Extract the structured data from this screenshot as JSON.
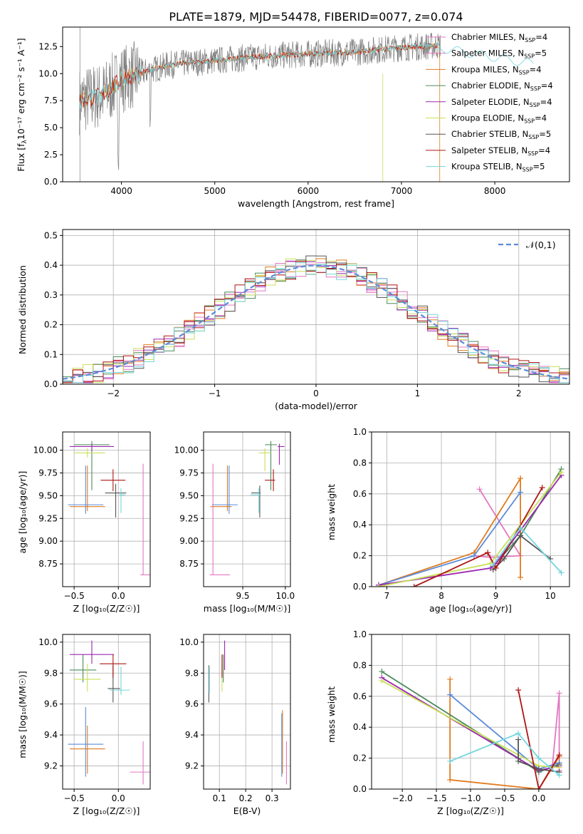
{
  "title": "PLATE=1879, MJD=54478, FIBERID=0077, z=0.074",
  "colors": {
    "Chabrier MILES": "#e377c2",
    "Salpeter MILES": "#e377c2",
    "Kroupa MILES": "#e07b20",
    "Chabrier ELODIE": "#4a8a5a",
    "Salpeter ELODIE": "#9b27b0",
    "Kroupa ELODIE": "#c8e05a",
    "Chabrier STELIB": "#555555",
    "Salpeter STELIB": "#b01515",
    "Kroupa STELIB": "#73d6dd",
    "data": "#808080",
    "cornflower": "#5b8bd9"
  },
  "chart_data": [
    {
      "id": "spectrum",
      "type": "line",
      "xlabel": "wavelength [Angstrom, rest frame]",
      "ylabel_text": "Flux [f",
      "ylabel_units": "10⁻¹⁷ erg cm⁻² s⁻¹ A⁻¹]",
      "xlim": [
        3370,
        8800
      ],
      "ylim": [
        0,
        14.3
      ],
      "xticks": [
        4000,
        5000,
        6000,
        7000,
        8000
      ],
      "yticks": [
        "0.0",
        "2.5",
        "5.0",
        "7.5",
        "10.0",
        "12.5"
      ],
      "legend_position": "upper right",
      "legend": [
        {
          "name": "Chabrier MILES",
          "nssp": "4"
        },
        {
          "name": "Salpeter MILES",
          "nssp": "5"
        },
        {
          "name": "Kroupa MILES",
          "nssp": "4"
        },
        {
          "name": "Chabrier ELODIE",
          "nssp": "4"
        },
        {
          "name": "Salpeter ELODIE",
          "nssp": "4"
        },
        {
          "name": "Kroupa ELODIE",
          "nssp": "4"
        },
        {
          "name": "Chabrier STELIB",
          "nssp": "5"
        },
        {
          "name": "Salpeter STELIB",
          "nssp": "4"
        },
        {
          "name": "Kroupa STELIB",
          "nssp": "5"
        }
      ],
      "continuum": {
        "x": [
          3550,
          3800,
          4000,
          4500,
          5000,
          5500,
          6000,
          6500,
          7000,
          7400
        ],
        "y": [
          7.5,
          8.0,
          9.5,
          10.8,
          11.2,
          11.6,
          11.8,
          12.0,
          12.4,
          12.6
        ]
      }
    },
    {
      "id": "residuals",
      "type": "line",
      "xlabel": "(data-model)/error",
      "ylabel": "Normed distribution",
      "xlim": [
        -2.5,
        2.5
      ],
      "ylim": [
        0,
        0.52
      ],
      "xticks": [
        "−2",
        "−1",
        "0",
        "1",
        "2"
      ],
      "yticks": [
        "0.0",
        "0.1",
        "0.2",
        "0.3",
        "0.4",
        "0.5"
      ],
      "legend": "𝒩(0,1)",
      "gaussian": {
        "mean": 0,
        "sigma": 1
      }
    },
    {
      "id": "age_vs_Z",
      "type": "scatter",
      "xlabel": "Z [log₁₀(Z/Z☉)]",
      "ylabel": "age  [log₁₀(age/yr)]",
      "xlim": [
        -0.63,
        0.36
      ],
      "ylim": [
        8.5,
        10.2
      ],
      "xticks": [
        "−0.5",
        "0.0"
      ],
      "yticks": [
        "8.75",
        "9.00",
        "9.25",
        "9.50",
        "9.75",
        "10.00"
      ],
      "points": [
        {
          "s": "Chabrier MILES",
          "x": 0.28,
          "y": 8.63,
          "xe": [
            0.03,
            0.1
          ],
          "ye": [
            0,
            1.22
          ]
        },
        {
          "s": "Kroupa MILES",
          "x": -0.35,
          "y": 9.38,
          "xe": [
            0.2,
            0.2
          ],
          "ye": [
            0.05,
            0.45
          ]
        },
        {
          "s": "cornflower",
          "x": -0.37,
          "y": 9.4,
          "xe": [
            0.2,
            0.2
          ],
          "ye": [
            0.1,
            0.43
          ]
        },
        {
          "s": "Chabrier ELODIE",
          "x": -0.3,
          "y": 10.06,
          "xe": [
            0.2,
            0.2
          ],
          "ye": [
            0.5,
            0.04
          ]
        },
        {
          "s": "Salpeter ELODIE",
          "x": -0.3,
          "y": 10.04,
          "xe": [
            0.25,
            0.25
          ],
          "ye": [
            0.05,
            0.03
          ]
        },
        {
          "s": "Kroupa ELODIE",
          "x": -0.35,
          "y": 9.97,
          "xe": [
            0.15,
            0.2
          ],
          "ye": [
            0.05,
            0.05
          ]
        },
        {
          "s": "Chabrier STELIB",
          "x": -0.03,
          "y": 9.53,
          "xe": [
            0.12,
            0.12
          ],
          "ye": [
            0.27,
            0.1
          ]
        },
        {
          "s": "Salpeter STELIB",
          "x": -0.06,
          "y": 9.67,
          "xe": [
            0.14,
            0.14
          ],
          "ye": [
            0.12,
            0.12
          ]
        },
        {
          "s": "Kroupa STELIB",
          "x": 0.03,
          "y": 9.51,
          "xe": [
            0.02,
            0.05
          ],
          "ye": [
            0.2,
            0.07
          ]
        }
      ]
    },
    {
      "id": "age_vs_mass",
      "type": "scatter",
      "xlabel": "mass [log₁₀(M/M☉)]",
      "xlim": [
        9.04,
        10.06
      ],
      "ylim": [
        8.5,
        10.2
      ],
      "xticks": [
        "9.5",
        "10.0"
      ],
      "yticks": [
        "8.75",
        "9.00",
        "9.25",
        "9.50",
        "9.75",
        "10.00"
      ],
      "points": [
        {
          "s": "Chabrier MILES",
          "x": 9.15,
          "y": 8.63,
          "xe": [
            0.04,
            0.2
          ],
          "ye": [
            0,
            1.22
          ]
        },
        {
          "s": "Kroupa MILES",
          "x": 9.32,
          "y": 9.38,
          "xe": [
            0.2,
            0.05
          ],
          "ye": [
            0.05,
            0.45
          ]
        },
        {
          "s": "cornflower",
          "x": 9.34,
          "y": 9.4,
          "xe": [
            0.2,
            0.1
          ],
          "ye": [
            0.1,
            0.43
          ]
        },
        {
          "s": "Chabrier ELODIE",
          "x": 9.83,
          "y": 10.06,
          "xe": [
            0.07,
            0.07
          ],
          "ye": [
            0.5,
            0.04
          ]
        },
        {
          "s": "Salpeter ELODIE",
          "x": 9.93,
          "y": 10.04,
          "xe": [
            0.02,
            0.06
          ],
          "ye": [
            0.2,
            0.03
          ]
        },
        {
          "s": "Kroupa ELODIE",
          "x": 9.76,
          "y": 9.97,
          "xe": [
            0.07,
            0.07
          ],
          "ye": [
            0.2,
            0.05
          ]
        },
        {
          "s": "Chabrier STELIB",
          "x": 9.7,
          "y": 9.53,
          "xe": [
            0.1,
            0.01
          ],
          "ye": [
            0.27,
            0.08
          ]
        },
        {
          "s": "Salpeter STELIB",
          "x": 9.86,
          "y": 9.67,
          "xe": [
            0.1,
            0.02
          ],
          "ye": [
            0.12,
            0.12
          ]
        },
        {
          "s": "Kroupa STELIB",
          "x": 9.69,
          "y": 9.51,
          "xe": [
            0.1,
            0.02
          ],
          "ye": [
            0.2,
            0.07
          ]
        }
      ]
    },
    {
      "id": "weight_vs_age",
      "type": "line",
      "xlabel": "age  [log₁₀(age/yr)]",
      "ylabel": "mass weight",
      "xlim": [
        6.72,
        10.35
      ],
      "ylim": [
        0,
        1.0
      ],
      "xticks": [
        "7",
        "8",
        "9",
        "10"
      ],
      "yticks": [
        "0.0",
        "0.2",
        "0.4",
        "0.6",
        "0.8",
        "1.0"
      ],
      "series": [
        {
          "s": "Chabrier MILES",
          "x": [
            8.6,
            8.9,
            9.45,
            8.7
          ],
          "y": [
            0.2,
            0.19,
            0.2,
            0.63
          ]
        },
        {
          "s": "Kroupa MILES",
          "x": [
            6.85,
            8.6,
            9.45,
            9.45
          ],
          "y": [
            0.01,
            0.22,
            0.7,
            0.06
          ]
        },
        {
          "s": "cornflower",
          "x": [
            6.85,
            8.6,
            9.45
          ],
          "y": [
            0.01,
            0.2,
            0.61
          ]
        },
        {
          "s": "Chabrier ELODIE",
          "x": [
            8.95,
            9.45,
            10.2
          ],
          "y": [
            0.13,
            0.33,
            0.76
          ]
        },
        {
          "s": "Salpeter ELODIE",
          "x": [
            6.85,
            8.9,
            9.0,
            10.2
          ],
          "y": [
            0.01,
            0.12,
            0.15,
            0.72
          ]
        },
        {
          "s": "Kroupa ELODIE",
          "x": [
            6.85,
            8.9,
            10.2
          ],
          "y": [
            0.0,
            0.15,
            0.74
          ]
        },
        {
          "s": "Chabrier STELIB",
          "x": [
            8.95,
            9.15,
            9.45,
            10.0
          ],
          "y": [
            0.11,
            0.18,
            0.33,
            0.18
          ]
        },
        {
          "s": "Salpeter STELIB",
          "x": [
            7.5,
            8.85,
            9.0,
            9.85
          ],
          "y": [
            0.0,
            0.22,
            0.12,
            0.64
          ]
        },
        {
          "s": "Kroupa STELIB",
          "x": [
            8.95,
            9.45,
            10.2
          ],
          "y": [
            0.14,
            0.38,
            0.09
          ]
        }
      ]
    },
    {
      "id": "mass_vs_Z",
      "type": "scatter",
      "xlabel": "Z [log₁₀(Z/Z☉)]",
      "ylabel": "mass [log₁₀(M/M☉)]",
      "xlim": [
        -0.63,
        0.36
      ],
      "ylim": [
        9.05,
        10.05
      ],
      "xticks": [
        "−0.5",
        "0.0"
      ],
      "yticks": [
        "9.2",
        "9.4",
        "9.6",
        "9.8",
        "10.0"
      ],
      "points": [
        {
          "s": "Chabrier MILES",
          "x": 0.28,
          "y": 9.16,
          "xe": [
            0.15,
            0.1
          ],
          "ye": [
            0.08,
            0.2
          ]
        },
        {
          "s": "Kroupa MILES",
          "x": -0.35,
          "y": 9.31,
          "xe": [
            0.2,
            0.2
          ],
          "ye": [
            0.16,
            0.15
          ]
        },
        {
          "s": "cornflower",
          "x": -0.37,
          "y": 9.34,
          "xe": [
            0.2,
            0.2
          ],
          "ye": [
            0.21,
            0.24
          ]
        },
        {
          "s": "Chabrier ELODIE",
          "x": -0.4,
          "y": 9.82,
          "xe": [
            0.15,
            0.15
          ],
          "ye": [
            0.08,
            0.1
          ]
        },
        {
          "s": "Salpeter ELODIE",
          "x": -0.3,
          "y": 9.92,
          "xe": [
            0.25,
            0.25
          ],
          "ye": [
            0.06,
            0.09
          ]
        },
        {
          "s": "Kroupa ELODIE",
          "x": -0.35,
          "y": 9.76,
          "xe": [
            0.15,
            0.15
          ],
          "ye": [
            0.08,
            0.1
          ]
        },
        {
          "s": "Chabrier STELIB",
          "x": -0.06,
          "y": 9.7,
          "xe": [
            0.06,
            0.08
          ],
          "ye": [
            0.09,
            0.15
          ]
        },
        {
          "s": "Salpeter STELIB",
          "x": -0.06,
          "y": 9.86,
          "xe": [
            0.15,
            0.15
          ],
          "ye": [
            0.09,
            0.06
          ]
        },
        {
          "s": "Kroupa STELIB",
          "x": 0.03,
          "y": 9.69,
          "xe": [
            0.13,
            0.1
          ],
          "ye": [
            0.03,
            0.15
          ]
        }
      ]
    },
    {
      "id": "mass_vs_ebv",
      "type": "scatter",
      "xlabel": "E(B-V)",
      "xlim": [
        0.04,
        0.37
      ],
      "ylim": [
        9.05,
        10.05
      ],
      "xticks": [
        "0.1",
        "0.2",
        "0.3"
      ],
      "yticks": [
        "9.2",
        "9.4",
        "9.6",
        "9.8",
        "10.0"
      ],
      "points": [
        {
          "s": "Chabrier MILES",
          "x": 0.355,
          "y": 9.16,
          "xe": [
            0,
            0
          ],
          "ye": [
            0.08,
            0.2
          ]
        },
        {
          "s": "Kroupa MILES",
          "x": 0.34,
          "y": 9.31,
          "xe": [
            0,
            0
          ],
          "ye": [
            0.16,
            0.25
          ]
        },
        {
          "s": "cornflower",
          "x": 0.337,
          "y": 9.34,
          "xe": [
            0,
            0
          ],
          "ye": [
            0.21,
            0.2
          ]
        },
        {
          "s": "Chabrier ELODIE",
          "x": 0.115,
          "y": 9.82,
          "xe": [
            0,
            0
          ],
          "ye": [
            0.08,
            0.1
          ]
        },
        {
          "s": "Salpeter ELODIE",
          "x": 0.12,
          "y": 9.92,
          "xe": [
            0,
            0
          ],
          "ye": [
            0.1,
            0.09
          ]
        },
        {
          "s": "Kroupa ELODIE",
          "x": 0.11,
          "y": 9.76,
          "xe": [
            0,
            0
          ],
          "ye": [
            0.08,
            0.1
          ]
        },
        {
          "s": "Chabrier STELIB",
          "x": 0.06,
          "y": 9.7,
          "xe": [
            0,
            0
          ],
          "ye": [
            0.09,
            0.15
          ]
        },
        {
          "s": "Salpeter STELIB",
          "x": 0.11,
          "y": 9.86,
          "xe": [
            0,
            0
          ],
          "ye": [
            0.09,
            0.06
          ]
        },
        {
          "s": "Kroupa STELIB",
          "x": 0.062,
          "y": 9.71,
          "xe": [
            0,
            0
          ],
          "ye": [
            0.04,
            0.13
          ]
        }
      ]
    },
    {
      "id": "weight_vs_Z",
      "type": "line",
      "xlabel": "Z [log₁₀(Z/Z☉)]",
      "ylabel": "mass weight",
      "xlim": [
        -2.45,
        0.45
      ],
      "ylim": [
        0,
        1.0
      ],
      "xticks": [
        "−2.0",
        "−1.5",
        "−1.0",
        "−0.5",
        "0.0"
      ],
      "yticks": [
        "0.0",
        "0.2",
        "0.4",
        "0.6",
        "0.8",
        "1.0"
      ],
      "series": [
        {
          "s": "Chabrier MILES",
          "x": [
            0.0,
            0.2,
            0.3,
            0.3
          ],
          "y": [
            0.0,
            0.15,
            0.62,
            0.12
          ]
        },
        {
          "s": "Kroupa MILES",
          "x": [
            -1.3,
            -1.3,
            0.0,
            0.3
          ],
          "y": [
            0.71,
            0.06,
            0.0,
            0.21
          ]
        },
        {
          "s": "cornflower",
          "x": [
            -1.3,
            0.0,
            0.3
          ],
          "y": [
            0.61,
            0.13,
            0.17
          ]
        },
        {
          "s": "Chabrier ELODIE",
          "x": [
            -2.3,
            -0.3,
            0.0,
            0.3
          ],
          "y": [
            0.76,
            0.2,
            0.11,
            0.16
          ]
        },
        {
          "s": "Salpeter ELODIE",
          "x": [
            -2.3,
            0.0,
            0.3
          ],
          "y": [
            0.72,
            0.12,
            0.15
          ]
        },
        {
          "s": "Kroupa ELODIE",
          "x": [
            -2.3,
            0.0,
            0.3
          ],
          "y": [
            0.7,
            0.15,
            0.14
          ]
        },
        {
          "s": "Chabrier STELIB",
          "x": [
            -0.3,
            -0.3,
            0.0,
            0.3
          ],
          "y": [
            0.32,
            0.18,
            0.13,
            0.11
          ]
        },
        {
          "s": "Salpeter STELIB",
          "x": [
            -0.3,
            0.0,
            0.3
          ],
          "y": [
            0.64,
            0.0,
            0.22
          ]
        },
        {
          "s": "Kroupa STELIB",
          "x": [
            -1.3,
            -0.3,
            0.0,
            0.3
          ],
          "y": [
            0.18,
            0.36,
            0.2,
            0.09
          ]
        }
      ]
    }
  ]
}
